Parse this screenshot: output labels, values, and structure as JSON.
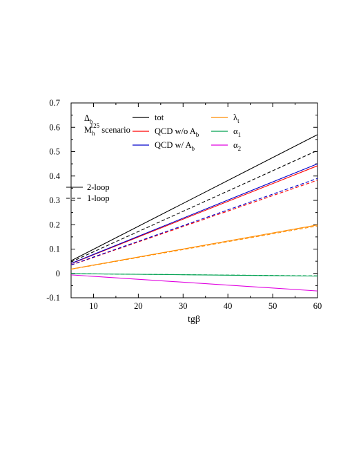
{
  "chart_data": {
    "type": "line",
    "title": "",
    "xlabel": "tgβ",
    "ylabel": "",
    "xlim": [
      5,
      60
    ],
    "ylim": [
      -0.1,
      0.7
    ],
    "x_ticks": [
      10,
      20,
      30,
      40,
      50,
      60
    ],
    "y_ticks": [
      -0.1,
      0,
      0.1,
      0.2,
      0.3,
      0.4,
      0.5,
      0.6,
      0.7
    ],
    "grid": false,
    "annotations": {
      "line1_main": "Δ",
      "line1_sub": "b",
      "line2_main": "M",
      "line2_sub": "h",
      "line2_sup": "125",
      "line2_rest": " scenario"
    },
    "legend_loop": [
      {
        "label": "2-loop",
        "style": "solid"
      },
      {
        "label": "1-loop",
        "style": "dashed"
      }
    ],
    "legend_contrib": [
      {
        "label": "tot",
        "sub": "",
        "color": "#000000"
      },
      {
        "label": "QCD w/o A",
        "sub": "b",
        "color": "#ff0000"
      },
      {
        "label": "QCD w/  A",
        "sub": "b",
        "color": "#0000cc"
      },
      {
        "label": "λ",
        "sub": "t",
        "color": "#ff8c00"
      },
      {
        "label": "α",
        "sub": "1",
        "color": "#00a050"
      },
      {
        "label": "α",
        "sub": "2",
        "color": "#e000e0"
      }
    ],
    "x": [
      5,
      60
    ],
    "series": [
      {
        "name": "tot",
        "loop": "2-loop",
        "color": "#000000",
        "values": [
          0.052,
          0.57
        ]
      },
      {
        "name": "tot",
        "loop": "1-loop",
        "color": "#000000",
        "values": [
          0.047,
          0.505
        ]
      },
      {
        "name": "QCD w/o Ab",
        "loop": "2-loop",
        "color": "#ff0000",
        "values": [
          0.04,
          0.442
        ]
      },
      {
        "name": "QCD w/o Ab",
        "loop": "1-loop",
        "color": "#ff0000",
        "values": [
          0.034,
          0.383
        ]
      },
      {
        "name": "QCD w/ Ab",
        "loop": "2-loop",
        "color": "#0000cc",
        "values": [
          0.041,
          0.45
        ]
      },
      {
        "name": "QCD w/ Ab",
        "loop": "1-loop",
        "color": "#0000cc",
        "values": [
          0.035,
          0.39
        ]
      },
      {
        "name": "λt",
        "loop": "2-loop",
        "color": "#ff8c00",
        "values": [
          0.018,
          0.199
        ]
      },
      {
        "name": "λt",
        "loop": "1-loop",
        "color": "#ff8c00",
        "values": [
          0.017,
          0.195
        ]
      },
      {
        "name": "α1",
        "loop": "2-loop",
        "color": "#00a050",
        "values": [
          -0.001,
          -0.011
        ]
      },
      {
        "name": "α1",
        "loop": "1-loop",
        "color": "#00a050",
        "values": [
          -0.001,
          -0.01
        ]
      },
      {
        "name": "α2",
        "loop": "2-loop",
        "color": "#e000e0",
        "values": [
          -0.006,
          -0.072
        ]
      }
    ]
  }
}
